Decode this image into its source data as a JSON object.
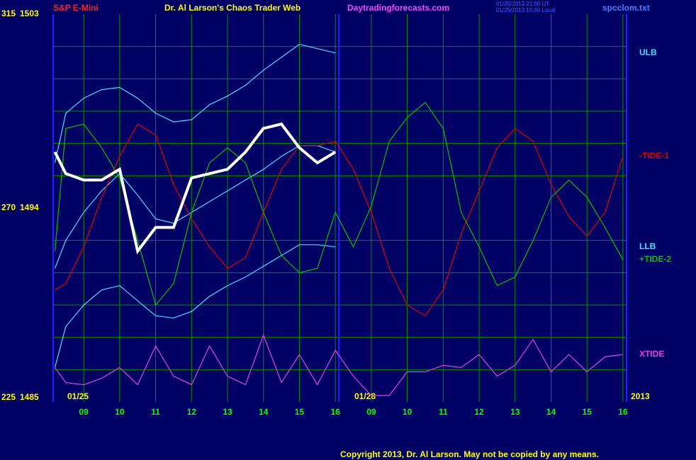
{
  "chart_data": {
    "type": "line",
    "title": "Dr. Al Larson's Chaos Trader Web",
    "instrument": "S&P E-Mini",
    "site": "Daytradingforecasts.com",
    "timestamps": [
      "01/25/2013 21:00 UT",
      "01/25/2013 15:00 Local"
    ],
    "file": "spcclom.txt",
    "copyright": "Copyright 2013, Dr. Al Larson. May not be copied by any means.",
    "date_labels": [
      "01/25",
      "01/28",
      "2013"
    ],
    "xlim": [
      8.15,
      24.1
    ],
    "xticks": [
      {
        "value": 9,
        "label": "09"
      },
      10,
      11,
      12,
      13,
      14,
      15,
      16,
      {
        "value": 17,
        "label": "09"
      },
      {
        "value": 18,
        "label": "10"
      },
      {
        "value": 19,
        "label": "11"
      },
      {
        "value": 20,
        "label": "12"
      },
      {
        "value": 21,
        "label": "13"
      },
      {
        "value": 22,
        "label": "14"
      },
      {
        "value": 23,
        "label": "15"
      },
      {
        "value": 24,
        "label": "16"
      }
    ],
    "session_break": 16.1,
    "ylim": [
      1485,
      1503
    ],
    "yticks": [
      1485,
      1494,
      1503
    ],
    "y2lim": [
      225,
      315
    ],
    "y2ticks": [
      225,
      270,
      315
    ],
    "ygrid": [
      1486.5,
      1488,
      1489.5,
      1491,
      1492.5,
      1495.5,
      1497,
      1498.5,
      1500,
      1501.5
    ],
    "grid": true,
    "x": [
      8.2,
      8.5,
      9,
      9.5,
      10,
      10.5,
      11,
      11.5,
      12,
      12.5,
      13,
      13.5,
      14,
      14.5,
      15,
      15.5,
      16,
      16.5,
      17,
      17.5,
      18,
      18.5,
      19,
      19.5,
      20,
      20.5,
      21,
      21.5,
      22,
      22.5,
      23,
      23.5,
      24
    ],
    "series": [
      {
        "name": "ULB",
        "color": "#40e0ff",
        "values": [
          1496.1,
          1498.4,
          1499.1,
          1499.5,
          1499.6,
          1499.1,
          1498.4,
          1498.0,
          1498.1,
          1498.8,
          1499.2,
          1499.7,
          1500.4,
          1501.0,
          1501.6,
          1501.4,
          1501.2,
          null,
          null,
          null,
          null,
          null,
          null,
          null,
          null,
          null,
          null,
          null,
          null,
          null,
          null,
          null,
          null
        ]
      },
      {
        "color": "#40e0ff",
        "values": [
          1491.2,
          1492.5,
          1493.8,
          1494.8,
          1495.6,
          1494.6,
          1493.5,
          1493.3,
          1493.8,
          1494.3,
          1494.8,
          1495.3,
          1495.8,
          1496.4,
          1496.9,
          1496.9,
          1496.6,
          null,
          null,
          null,
          null,
          null,
          null,
          null,
          null,
          null,
          null,
          null,
          null,
          null,
          null,
          null,
          null
        ]
      },
      {
        "name": "LLB",
        "color": "#40e0ff",
        "values": [
          1486.6,
          1488.5,
          1489.5,
          1490.2,
          1490.4,
          1489.7,
          1489.0,
          1488.9,
          1489.2,
          1489.9,
          1490.4,
          1490.8,
          1491.3,
          1491.8,
          1492.3,
          1492.3,
          1492.2,
          null,
          null,
          null,
          null,
          null,
          null,
          null,
          null,
          null,
          null,
          null,
          null,
          null,
          null,
          null,
          null
        ]
      },
      {
        "name": "-TIDE-1",
        "color": "#e00000",
        "values": [
          1490.2,
          1490.5,
          1492.2,
          1494.5,
          1496.4,
          1497.9,
          1497.4,
          1495.1,
          1493.5,
          1492.2,
          1491.2,
          1491.7,
          1493.8,
          1495.8,
          1496.9,
          1496.9,
          1497.1,
          1495.8,
          1493.8,
          1491.2,
          1489.5,
          1489.0,
          1490.2,
          1492.8,
          1494.8,
          1496.8,
          1497.7,
          1497.1,
          1495.1,
          1493.6,
          1492.7,
          1493.8,
          1496.4
        ]
      },
      {
        "name": "+TIDE-2",
        "color": "#00c000",
        "values": [
          1492.0,
          1497.7,
          1497.9,
          1496.8,
          1495.4,
          1492.5,
          1489.5,
          1490.5,
          1493.8,
          1496.1,
          1496.8,
          1496.1,
          1493.8,
          1491.8,
          1491.0,
          1491.2,
          1493.8,
          1492.2,
          1494.1,
          1497.1,
          1498.2,
          1498.9,
          1497.7,
          1493.8,
          1492.2,
          1490.4,
          1490.8,
          1492.5,
          1494.5,
          1495.3,
          1494.5,
          1493.1,
          1491.6
        ]
      },
      {
        "name": "XTIDE",
        "color": "#e040e0",
        "values": [
          1486.6,
          1485.9,
          1485.8,
          1486.1,
          1486.6,
          1485.8,
          1487.6,
          1486.2,
          1485.8,
          1487.6,
          1486.2,
          1485.8,
          1488.1,
          1485.9,
          1487.2,
          1485.8,
          1487.4,
          1486.2,
          1485.3,
          1485.3,
          1486.4,
          1486.4,
          1486.7,
          1486.6,
          1487.2,
          1486.2,
          1486.7,
          1487.9,
          1486.4,
          1487.2,
          1486.4,
          1487.1,
          1487.2
        ]
      },
      {
        "color": "#ffffff",
        "width": 4,
        "values": [
          1496.6,
          1495.6,
          1495.3,
          1495.3,
          1495.8,
          1492.0,
          1493.1,
          1493.1,
          1495.4,
          1495.6,
          1495.8,
          1496.6,
          1497.7,
          1497.9,
          1496.8,
          1496.1,
          1496.6,
          null,
          null,
          null,
          null,
          null,
          null,
          null,
          null,
          null,
          null,
          null,
          null,
          null,
          null,
          null,
          null
        ]
      }
    ]
  }
}
